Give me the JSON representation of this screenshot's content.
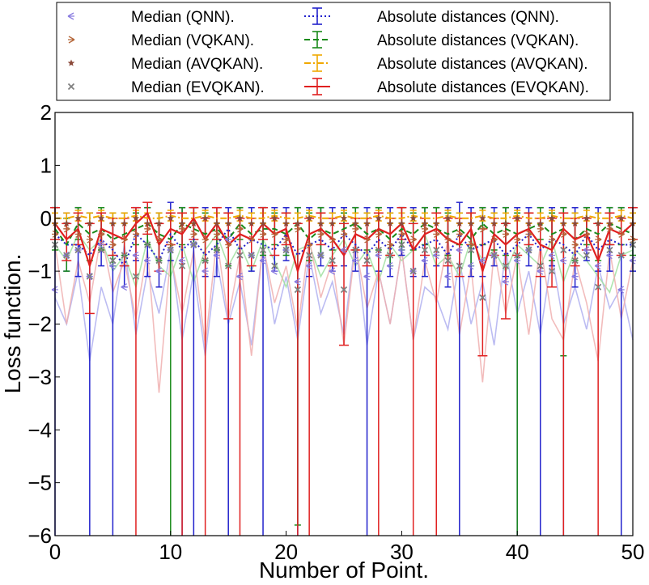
{
  "chart_data": {
    "type": "line",
    "xlabel": "Number of Point.",
    "ylabel": "Loss function.",
    "xlim": [
      0,
      50
    ],
    "ylim": [
      -6,
      2
    ],
    "xticks": [
      0,
      10,
      20,
      30,
      40,
      50
    ],
    "yticks": [
      2,
      1,
      0,
      -1,
      -2,
      -3,
      -4,
      -5,
      -6
    ],
    "xtick_labels": [
      "0",
      "10",
      "20",
      "30",
      "40",
      "50"
    ],
    "ytick_labels": [
      "2",
      "1",
      "0",
      "−1",
      "−2",
      "−3",
      "−4",
      "−5",
      "−6"
    ],
    "grid": false,
    "legend_position": "top (above plot), 2 columns",
    "legend": [
      {
        "label": "Median (QNN).",
        "marker": "tri-left",
        "color": "#8a7de0"
      },
      {
        "label": "Median (VQKAN).",
        "marker": "tri-right",
        "color": "#b5673a"
      },
      {
        "label": "Median (AVQKAN).",
        "marker": "star",
        "color": "#8b4a3a"
      },
      {
        "label": "Median (EVQKAN).",
        "marker": "x",
        "color": "#808080"
      },
      {
        "label": "Absolute distances (QNN).",
        "marker": "errorbar-dotted",
        "color": "#2222cc"
      },
      {
        "label": "Absolute distances (VQKAN).",
        "marker": "errorbar-dashed",
        "color": "#1a8a1a"
      },
      {
        "label": "Absolute distances (AVQKAN).",
        "marker": "errorbar-dashdot",
        "color": "#f0a800"
      },
      {
        "label": "Absolute distances (EVQKAN).",
        "marker": "errorbar-solid",
        "color": "#e02020"
      }
    ],
    "x": [
      0,
      1,
      2,
      3,
      4,
      5,
      6,
      7,
      8,
      9,
      10,
      11,
      12,
      13,
      14,
      15,
      16,
      17,
      18,
      19,
      20,
      21,
      22,
      23,
      24,
      25,
      26,
      27,
      28,
      29,
      30,
      31,
      32,
      33,
      34,
      35,
      36,
      37,
      38,
      39,
      40,
      41,
      42,
      43,
      44,
      45,
      46,
      47,
      48,
      49,
      50
    ],
    "series": [
      {
        "name": "Absolute distances (QNN).",
        "style": "dotted",
        "color": "#2222cc",
        "values": [
          -0.3,
          -0.5,
          -0.5,
          -0.7,
          -0.4,
          -0.6,
          -0.9,
          -0.3,
          -0.5,
          -0.8,
          -0.3,
          -0.6,
          -0.4,
          -0.7,
          -0.5,
          -0.2,
          -0.6,
          -0.4,
          -0.5,
          -0.6,
          -0.3,
          -0.7,
          -0.5,
          -0.4,
          -0.6,
          -0.3,
          -0.5,
          -0.7,
          -0.4,
          -0.6,
          -0.3,
          -0.6,
          -0.5,
          -0.4,
          -0.7,
          -0.3,
          -0.6,
          -0.5,
          -0.4,
          -0.7,
          -0.5,
          -0.3,
          -0.6,
          -0.4,
          -0.5,
          -0.7,
          -0.3,
          -0.6,
          -0.4,
          -0.5,
          -0.5
        ],
        "err_low": [
          5.7,
          0.5,
          0.6,
          5.3,
          0.5,
          5.4,
          0.4,
          0.5,
          0.6,
          0.5,
          0.5,
          5.4,
          5.6,
          0.4,
          0.6,
          5.8,
          0.5,
          0.6,
          5.5,
          0.4,
          0.5,
          5.3,
          0.6,
          0.5,
          0.4,
          0.6,
          0.5,
          5.3,
          0.6,
          0.5,
          0.4,
          0.5,
          0.6,
          0.5,
          0.6,
          5.7,
          0.5,
          0.6,
          0.5,
          0.4,
          5.5,
          0.6,
          5.4,
          0.5,
          5.5,
          0.6,
          0.5,
          0.4,
          0.6,
          5.5,
          0.5
        ],
        "err_high": [
          0.5,
          0.6,
          0.7,
          0.8,
          0.5,
          0.5,
          0.8,
          0.5,
          0.7,
          0.9,
          0.6,
          0.8,
          0.6,
          0.9,
          0.7,
          0.4,
          0.8,
          0.6,
          0.7,
          0.8,
          0.5,
          0.9,
          0.7,
          0.6,
          0.8,
          0.5,
          0.7,
          0.9,
          0.6,
          0.8,
          0.5,
          0.8,
          0.7,
          0.6,
          0.9,
          0.6,
          0.8,
          0.7,
          0.6,
          0.9,
          0.7,
          0.5,
          0.8,
          0.6,
          0.7,
          0.9,
          0.5,
          0.8,
          0.6,
          0.7,
          0.7
        ]
      },
      {
        "name": "Absolute distances (VQKAN).",
        "style": "dashed",
        "color": "#1a8a1a",
        "values": [
          -0.2,
          -0.5,
          -0.1,
          -0.3,
          -0.2,
          -0.4,
          -0.3,
          -0.2,
          -0.1,
          -0.3,
          -0.4,
          -0.1,
          -0.2,
          -0.3,
          -0.2,
          -0.4,
          -0.1,
          -0.3,
          -0.2,
          -0.2,
          -0.3,
          -0.1,
          -0.4,
          -0.2,
          -0.3,
          -0.2,
          -0.1,
          -0.3,
          -0.2,
          -0.4,
          -0.2,
          -0.3,
          -0.1,
          -0.2,
          -0.3,
          -0.2,
          -0.4,
          -0.1,
          -0.3,
          -0.2,
          -0.3,
          -0.2,
          -0.1,
          -0.3,
          -0.2,
          -0.4,
          -0.2,
          -0.3,
          -0.1,
          -0.2,
          -0.3
        ],
        "err_low": [
          0.4,
          0.5,
          0.3,
          0.5,
          0.4,
          0.5,
          0.4,
          0.3,
          0.4,
          0.5,
          5.6,
          0.4,
          0.3,
          0.5,
          0.4,
          0.5,
          0.3,
          0.4,
          0.5,
          0.3,
          0.4,
          5.7,
          0.4,
          0.5,
          0.3,
          0.4,
          0.5,
          0.3,
          0.4,
          0.5,
          0.4,
          0.3,
          0.4,
          0.5,
          0.4,
          0.3,
          0.5,
          0.4,
          0.3,
          0.5,
          5.7,
          0.4,
          0.3,
          0.5,
          2.4,
          0.4,
          0.3,
          0.5,
          0.4,
          0.3,
          0.4
        ],
        "err_high": [
          0.4,
          0.5,
          0.3,
          0.4,
          0.4,
          0.5,
          0.4,
          0.3,
          0.3,
          0.4,
          0.5,
          0.3,
          0.4,
          0.4,
          0.3,
          0.5,
          0.3,
          0.4,
          0.4,
          0.3,
          0.4,
          0.3,
          0.5,
          0.4,
          0.4,
          0.3,
          0.3,
          0.4,
          0.4,
          0.5,
          0.4,
          0.4,
          0.3,
          0.4,
          0.4,
          0.3,
          0.5,
          0.3,
          0.4,
          0.4,
          0.4,
          0.3,
          0.3,
          0.4,
          0.4,
          0.5,
          0.4,
          0.4,
          0.3,
          0.4,
          0.4
        ]
      },
      {
        "name": "Absolute distances (AVQKAN).",
        "style": "dashdot",
        "color": "#f0a800",
        "values": [
          0.0,
          0.0,
          0.05,
          0.0,
          0.05,
          0.0,
          0.0,
          0.05,
          0.0,
          0.0,
          0.05,
          0.0,
          0.0,
          0.05,
          0.0,
          0.0,
          0.05,
          0.0,
          0.0,
          0.05,
          0.0,
          0.0,
          0.05,
          0.0,
          0.0,
          0.05,
          0.0,
          0.0,
          0.05,
          0.0,
          0.0,
          0.05,
          0.0,
          0.0,
          0.05,
          0.0,
          0.0,
          0.05,
          0.0,
          0.0,
          0.05,
          0.0,
          0.0,
          0.05,
          0.0,
          0.0,
          0.05,
          0.0,
          0.0,
          0.05,
          0.0
        ],
        "err_low": [
          0.1,
          0.1,
          0.1,
          0.1,
          0.1,
          0.1,
          0.1,
          0.1,
          0.1,
          0.1,
          0.1,
          0.1,
          0.1,
          0.1,
          0.1,
          0.1,
          0.1,
          0.1,
          0.1,
          0.1,
          0.1,
          0.1,
          0.1,
          0.1,
          0.1,
          0.1,
          0.1,
          0.1,
          0.1,
          0.1,
          0.1,
          0.1,
          0.1,
          0.1,
          0.1,
          0.1,
          0.1,
          0.1,
          0.1,
          0.1,
          0.1,
          0.1,
          0.1,
          0.1,
          0.1,
          0.1,
          0.1,
          0.1,
          0.1,
          0.1,
          0.1
        ],
        "err_high": [
          0.1,
          0.1,
          0.1,
          0.1,
          0.1,
          0.1,
          0.1,
          0.1,
          0.1,
          0.1,
          0.1,
          0.1,
          0.1,
          0.1,
          0.1,
          0.1,
          0.1,
          0.1,
          0.1,
          0.1,
          0.1,
          0.1,
          0.1,
          0.1,
          0.1,
          0.1,
          0.1,
          0.1,
          0.1,
          0.1,
          0.1,
          0.1,
          0.1,
          0.1,
          0.1,
          0.1,
          0.1,
          0.1,
          0.1,
          0.1,
          0.1,
          0.1,
          0.1,
          0.1,
          0.1,
          0.1,
          0.1,
          0.1,
          0.1,
          0.1,
          0.1
        ]
      },
      {
        "name": "Absolute distances (EVQKAN).",
        "style": "solid",
        "color": "#e02020",
        "values": [
          -0.1,
          -0.4,
          -0.2,
          -0.9,
          -0.2,
          -0.3,
          -0.4,
          -0.1,
          0.1,
          -0.5,
          -0.2,
          -0.3,
          0.0,
          -0.4,
          -0.1,
          -0.5,
          -0.3,
          -0.4,
          -0.1,
          -0.3,
          -0.2,
          -1.0,
          -0.3,
          -0.2,
          -0.4,
          -0.7,
          -0.3,
          -0.4,
          -0.2,
          -0.3,
          -0.1,
          -0.6,
          -0.3,
          -0.2,
          -0.4,
          -0.5,
          -0.2,
          -1.0,
          -0.3,
          -0.5,
          -0.3,
          -0.2,
          -0.5,
          -0.6,
          -0.2,
          -0.4,
          -0.3,
          -0.8,
          -0.2,
          -0.3,
          -0.1
        ],
        "err_low": [
          0.3,
          0.4,
          0.3,
          0.9,
          0.3,
          0.4,
          0.5,
          5.9,
          0.4,
          0.5,
          0.3,
          5.7,
          0.4,
          5.6,
          0.3,
          1.4,
          5.7,
          0.5,
          0.3,
          0.4,
          0.3,
          5.0,
          5.7,
          0.3,
          0.5,
          1.7,
          0.3,
          0.5,
          5.8,
          0.4,
          0.3,
          5.4,
          0.4,
          5.8,
          0.5,
          0.6,
          0.3,
          1.6,
          0.4,
          1.4,
          0.4,
          0.3,
          0.6,
          0.7,
          5.8,
          0.5,
          0.3,
          5.2,
          0.3,
          0.4,
          0.3
        ],
        "err_high": [
          0.3,
          0.3,
          0.3,
          0.8,
          0.3,
          0.3,
          0.4,
          0.3,
          0.2,
          0.4,
          0.3,
          0.4,
          0.2,
          0.4,
          0.3,
          0.6,
          0.3,
          0.4,
          0.3,
          0.3,
          0.3,
          0.9,
          0.3,
          0.3,
          0.4,
          0.6,
          0.3,
          0.4,
          0.3,
          0.3,
          0.3,
          0.5,
          0.3,
          0.3,
          0.4,
          0.5,
          0.3,
          0.8,
          0.3,
          0.4,
          0.3,
          0.3,
          0.5,
          0.6,
          0.3,
          0.4,
          0.3,
          0.7,
          0.3,
          0.3,
          0.3
        ]
      },
      {
        "name": "Median (QNN).",
        "style": "markers",
        "marker": "tri-left",
        "color": "#8a7de0",
        "values": [
          -1.35,
          -0.7,
          -0.6,
          -1.1,
          -0.5,
          -0.9,
          -1.3,
          -0.7,
          -0.8,
          -1.0,
          -0.6,
          -0.8,
          -0.5,
          -1.0,
          -0.7,
          -0.4,
          -1.1,
          -0.7,
          -0.8,
          -1.0,
          -0.6,
          -1.2,
          -0.9,
          -0.7,
          -1.0,
          -0.6,
          -0.8,
          -1.1,
          -0.7,
          -0.9,
          -0.6,
          -1.0,
          -0.8,
          -0.7,
          -1.1,
          -0.6,
          -0.9,
          -0.8,
          -0.7,
          -1.2,
          -0.8,
          -0.6,
          -1.0,
          -0.7,
          -0.8,
          -1.1,
          -0.6,
          -0.9,
          -0.7,
          -1.35,
          -0.8
        ]
      },
      {
        "name": "Median (VQKAN).",
        "style": "markers",
        "marker": "tri-right",
        "color": "#b5673a",
        "values": [
          -0.3,
          -0.2,
          -0.3,
          -0.4,
          -0.3,
          -0.5,
          -0.4,
          -0.3,
          -0.2,
          -0.4,
          -0.5,
          -0.2,
          -0.3,
          -0.4,
          -0.3,
          -0.5,
          -0.2,
          -0.4,
          -0.3,
          -0.3,
          -0.4,
          -0.2,
          -0.5,
          -0.3,
          -0.4,
          -0.3,
          -0.2,
          -0.4,
          -0.3,
          -0.5,
          -0.3,
          -0.4,
          -0.2,
          -0.3,
          -0.4,
          -0.3,
          -0.5,
          -0.2,
          -0.4,
          -0.3,
          -0.4,
          -0.3,
          -0.2,
          -0.4,
          -0.3,
          -0.5,
          -0.3,
          -0.4,
          -0.2,
          -0.3,
          -0.4
        ]
      },
      {
        "name": "Median (AVQKAN).",
        "style": "markers",
        "marker": "star",
        "color": "#8b4a3a",
        "values": [
          -0.1,
          -0.1,
          0.0,
          -0.1,
          0.0,
          -0.1,
          -0.1,
          0.0,
          -0.1,
          -0.1,
          0.0,
          -0.1,
          -0.1,
          0.0,
          -0.1,
          -0.1,
          0.0,
          -0.1,
          -0.1,
          0.0,
          -0.1,
          -0.1,
          0.0,
          -0.1,
          -0.1,
          0.0,
          -0.1,
          -0.1,
          0.0,
          -0.1,
          -0.1,
          0.0,
          -0.1,
          -0.1,
          0.0,
          -0.1,
          -0.1,
          0.0,
          -0.1,
          -0.1,
          0.0,
          -0.1,
          -0.1,
          0.0,
          -0.1,
          -0.1,
          0.0,
          -0.1,
          -0.1,
          0.0,
          -0.1
        ]
      },
      {
        "name": "Median (EVQKAN).",
        "style": "markers",
        "marker": "x",
        "color": "#808080",
        "values": [
          -0.5,
          -0.7,
          -0.6,
          -1.1,
          -0.6,
          -0.8,
          -0.7,
          -1.1,
          -0.5,
          -0.8,
          -0.6,
          -0.9,
          -0.5,
          -0.8,
          -0.6,
          -0.9,
          -0.7,
          -0.7,
          -0.6,
          -0.9,
          -0.6,
          -1.35,
          -0.7,
          -0.7,
          -0.8,
          -1.35,
          -0.6,
          -0.8,
          -0.6,
          -0.7,
          -0.5,
          -1.0,
          -0.6,
          -0.6,
          -0.8,
          -0.9,
          -0.6,
          -1.5,
          -0.7,
          -0.9,
          -0.7,
          -0.6,
          -0.9,
          -1.0,
          -0.6,
          -0.8,
          -0.7,
          -1.3,
          -0.6,
          -0.7,
          -0.5
        ]
      },
      {
        "name": "",
        "style": "faint",
        "color": "#b0b0f0",
        "values": [
          -1.5,
          -2.0,
          -1.0,
          -2.7,
          -1.3,
          -2.0,
          -0.5,
          -2.2,
          -1.0,
          -1.8,
          -0.6,
          -2.3,
          -1.0,
          -2.6,
          -0.8,
          -2.0,
          -1.2,
          -2.4,
          -0.5,
          -2.0,
          -1.1,
          -2.3,
          -0.7,
          -1.8,
          -1.2,
          -2.2,
          -0.4,
          -2.4,
          -1.0,
          -2.0,
          -0.6,
          -2.3,
          -1.3,
          -1.5,
          -2.1,
          -0.8,
          -2.0,
          -1.2,
          -2.4,
          -0.6,
          -1.8,
          -1.0,
          -2.2,
          -0.7,
          -2.0,
          -1.3,
          -2.1,
          -0.9,
          -1.7,
          -1.3,
          -2.3
        ]
      },
      {
        "name": "",
        "style": "faint",
        "color": "#a0e0a0",
        "values": [
          -0.5,
          -0.8,
          -0.3,
          -0.6,
          -0.4,
          -1.0,
          -0.7,
          -1.3,
          -0.4,
          -0.9,
          -1.1,
          -0.5,
          -1.2,
          -0.6,
          -0.3,
          -0.9,
          -0.5,
          -1.0,
          -0.4,
          -0.8,
          -1.3,
          -0.6,
          -0.5,
          -1.1,
          -0.7,
          -0.4,
          -0.9,
          -0.6,
          -1.2,
          -0.5,
          -0.8,
          -0.6,
          -0.3,
          -0.9,
          -0.7,
          -1.1,
          -0.4,
          -0.8,
          -0.6,
          -1.0,
          -0.5,
          -0.7,
          -0.9,
          -0.4,
          -1.2,
          -0.6,
          -0.8,
          -1.1,
          -1.4,
          -0.7,
          -0.6
        ]
      },
      {
        "name": "",
        "style": "faint",
        "color": "#f0b0b0",
        "values": [
          -0.5,
          -2.0,
          -0.8,
          -1.6,
          -0.3,
          -1.4,
          -0.8,
          -1.9,
          -0.6,
          -3.3,
          -0.7,
          -1.8,
          -0.6,
          -2.4,
          -0.4,
          -1.9,
          -0.7,
          -2.6,
          -0.5,
          -1.6,
          -0.9,
          -2.1,
          -0.4,
          -1.5,
          -0.8,
          -2.4,
          -0.5,
          -1.7,
          -1.0,
          -2.0,
          -0.6,
          -2.3,
          -0.8,
          -1.6,
          -0.4,
          -2.2,
          -0.9,
          -3.1,
          -0.6,
          -1.8,
          -0.7,
          -2.2,
          -0.5,
          -1.9,
          -2.3,
          -0.8,
          -1.6,
          -2.7,
          -0.6,
          -1.9,
          -0.8
        ]
      }
    ]
  }
}
